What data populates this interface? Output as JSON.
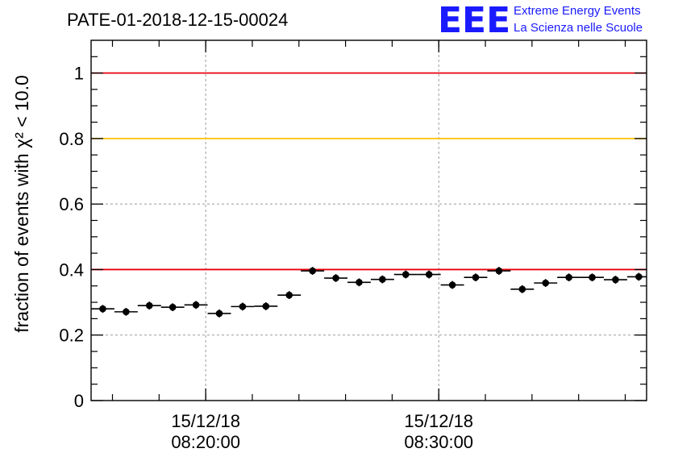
{
  "header": {
    "run_id": "PATE-01-2018-12-15-00024",
    "logo_letters": "EEE",
    "logo_line1": "Extreme Energy Events",
    "logo_line2": "La Scienza nelle Scuole"
  },
  "chart_data": {
    "type": "scatter",
    "title": "PATE-01-2018-12-15-00024",
    "xlabel": "",
    "ylabel": "fraction of events with χ² < 10.0",
    "ylim": [
      0,
      1.1
    ],
    "yticks": [
      {
        "value": 0,
        "label": "0"
      },
      {
        "value": 0.2,
        "label": "0.2"
      },
      {
        "value": 0.4,
        "label": "0.4"
      },
      {
        "value": 0.6,
        "label": "0.6"
      },
      {
        "value": 0.8,
        "label": "0.8"
      },
      {
        "value": 1,
        "label": "1"
      }
    ],
    "xlim": [
      "2018-12-15 08:15:05",
      "2018-12-15 08:38:55"
    ],
    "xticks": [
      {
        "value": "2018-12-15 08:20:00",
        "label_date": "15/12/18",
        "label_time": "08:20:00"
      },
      {
        "value": "2018-12-15 08:30:00",
        "label_date": "15/12/18",
        "label_time": "08:30:00"
      }
    ],
    "grid": true,
    "reference_lines": [
      {
        "y": 1.0,
        "color": "#e8000b"
      },
      {
        "y": 0.8,
        "color": "#ffc000"
      },
      {
        "y": 0.4,
        "color": "#e8000b"
      }
    ],
    "marker_color": "#000000",
    "points": [
      {
        "x": "2018-12-15 08:15:35",
        "y": 0.28,
        "err": 0.012
      },
      {
        "x": "2018-12-15 08:16:35",
        "y": 0.271,
        "err": 0.012
      },
      {
        "x": "2018-12-15 08:17:35",
        "y": 0.29,
        "err": 0.012
      },
      {
        "x": "2018-12-15 08:18:35",
        "y": 0.285,
        "err": 0.012
      },
      {
        "x": "2018-12-15 08:19:35",
        "y": 0.292,
        "err": 0.012
      },
      {
        "x": "2018-12-15 08:20:35",
        "y": 0.266,
        "err": 0.012
      },
      {
        "x": "2018-12-15 08:21:35",
        "y": 0.287,
        "err": 0.012
      },
      {
        "x": "2018-12-15 08:22:35",
        "y": 0.288,
        "err": 0.012
      },
      {
        "x": "2018-12-15 08:23:35",
        "y": 0.322,
        "err": 0.012
      },
      {
        "x": "2018-12-15 08:24:35",
        "y": 0.396,
        "err": 0.012
      },
      {
        "x": "2018-12-15 08:25:35",
        "y": 0.374,
        "err": 0.012
      },
      {
        "x": "2018-12-15 08:26:35",
        "y": 0.361,
        "err": 0.012
      },
      {
        "x": "2018-12-15 08:27:35",
        "y": 0.37,
        "err": 0.012
      },
      {
        "x": "2018-12-15 08:28:35",
        "y": 0.385,
        "err": 0.012
      },
      {
        "x": "2018-12-15 08:29:35",
        "y": 0.385,
        "err": 0.012
      },
      {
        "x": "2018-12-15 08:30:35",
        "y": 0.353,
        "err": 0.012
      },
      {
        "x": "2018-12-15 08:31:35",
        "y": 0.376,
        "err": 0.012
      },
      {
        "x": "2018-12-15 08:32:35",
        "y": 0.396,
        "err": 0.012
      },
      {
        "x": "2018-12-15 08:33:35",
        "y": 0.34,
        "err": 0.012
      },
      {
        "x": "2018-12-15 08:34:35",
        "y": 0.359,
        "err": 0.012
      },
      {
        "x": "2018-12-15 08:35:35",
        "y": 0.376,
        "err": 0.012
      },
      {
        "x": "2018-12-15 08:36:35",
        "y": 0.376,
        "err": 0.012
      },
      {
        "x": "2018-12-15 08:37:35",
        "y": 0.369,
        "err": 0.012
      },
      {
        "x": "2018-12-15 08:38:35",
        "y": 0.378,
        "err": 0.012
      }
    ]
  }
}
